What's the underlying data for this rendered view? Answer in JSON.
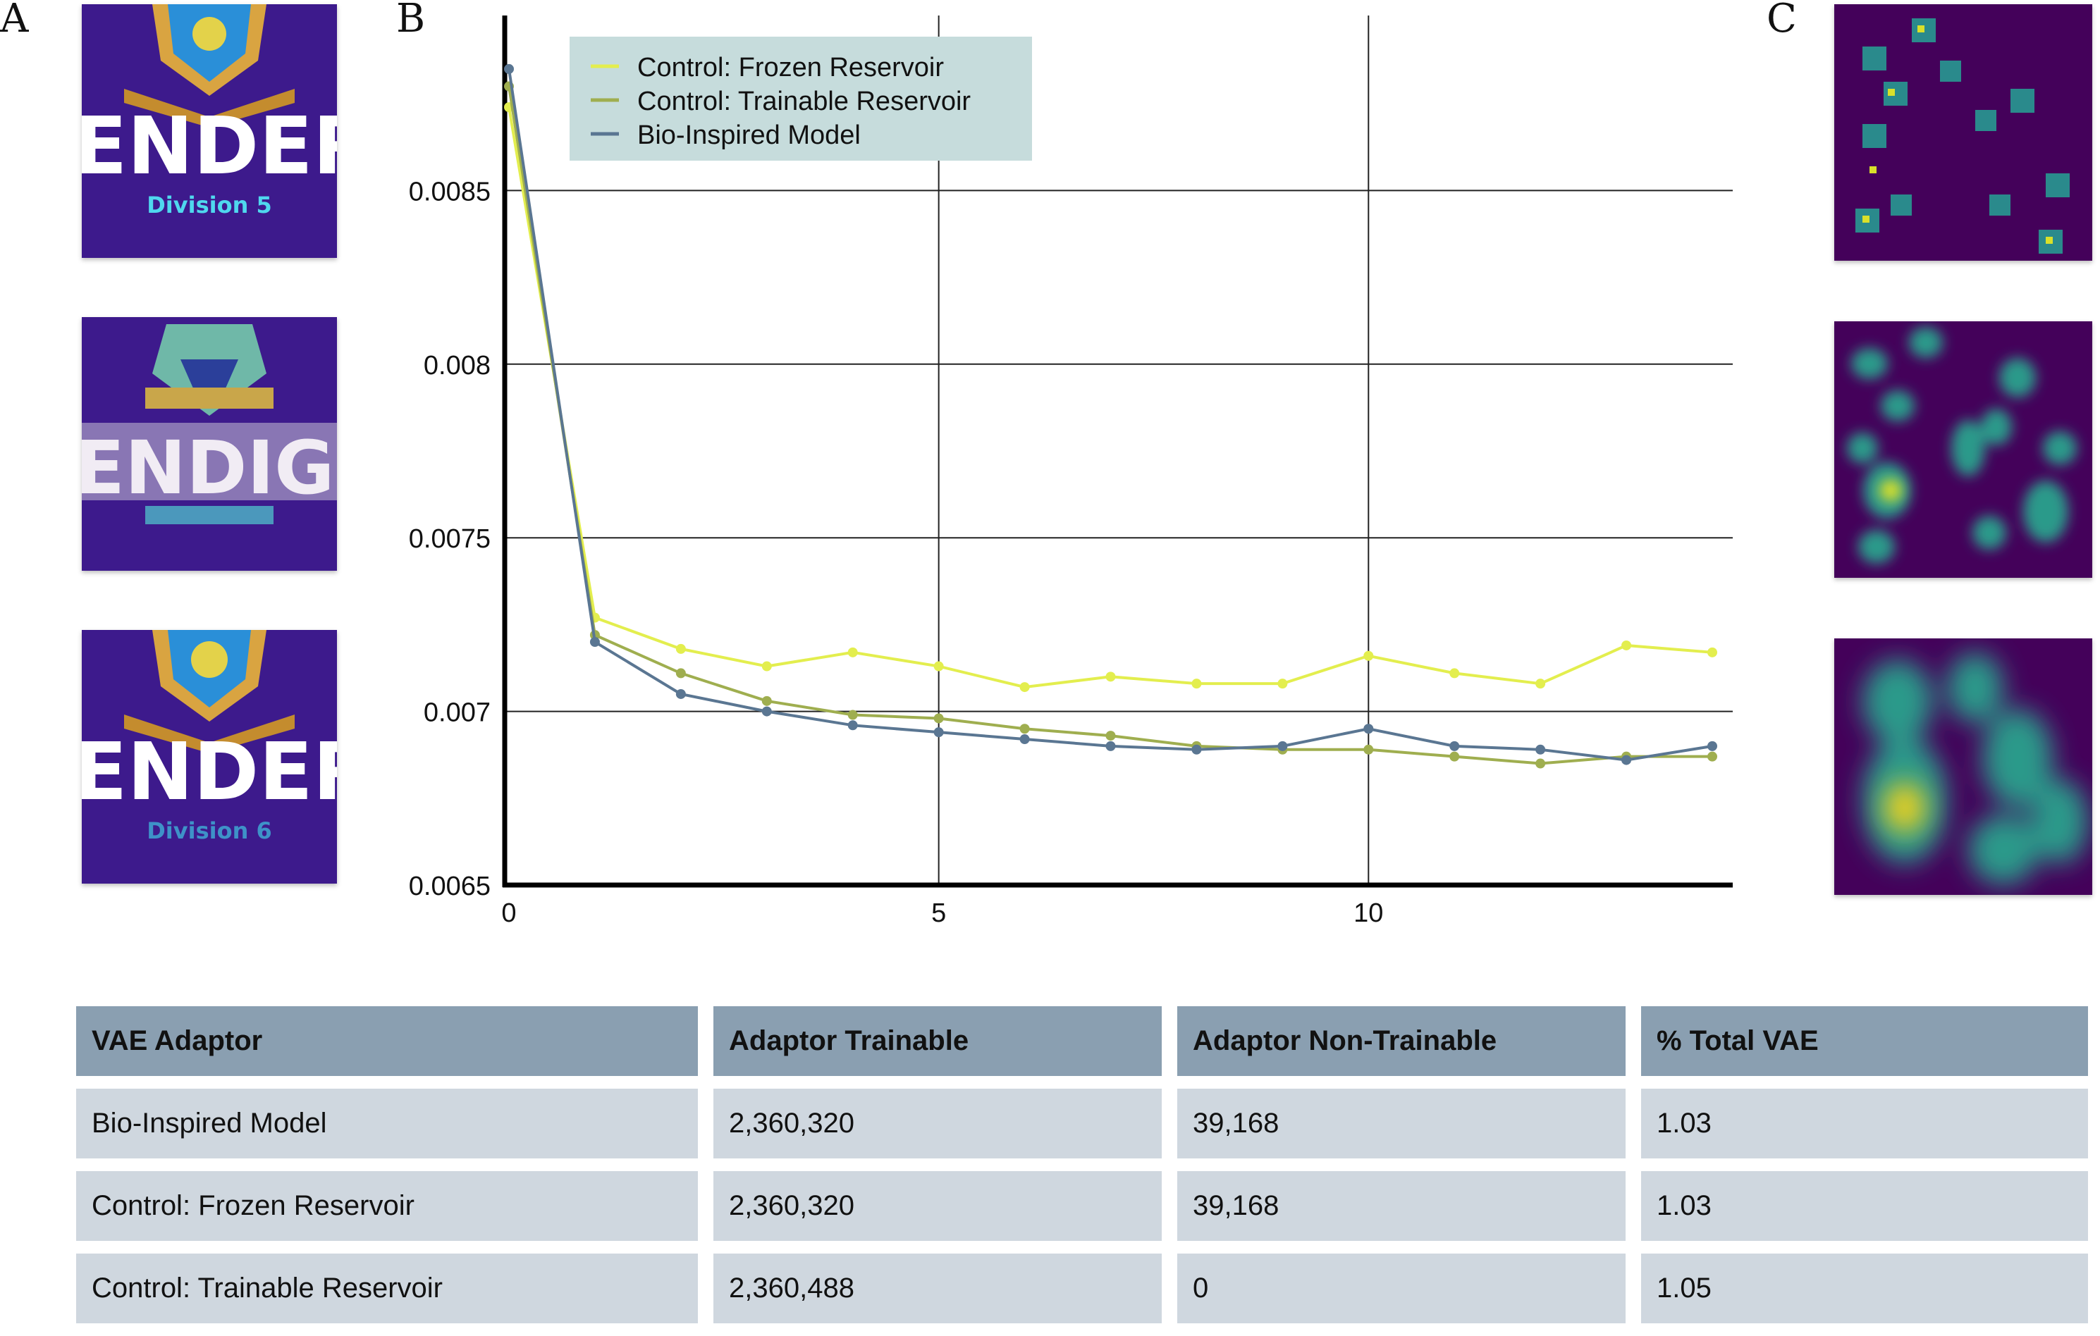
{
  "panels": {
    "a": "A",
    "b": "B",
    "c": "C"
  },
  "thumbnails": [
    {
      "big_text": "ENDER L",
      "small_text": "Division 5",
      "variant": "clean"
    },
    {
      "big_text": "ENDIG L",
      "small_text": "",
      "variant": "distorted"
    },
    {
      "big_text": "ENDER L",
      "small_text": "Division 6",
      "variant": "blurred"
    }
  ],
  "heatmaps": [
    "sharp-spots",
    "medium-blur",
    "heavy-blur"
  ],
  "colors": {
    "frozen": "#e3ee4e",
    "trainable": "#9fae4f",
    "bio": "#5a7692",
    "legend_bg": "#c6dcdc",
    "thumb_bg": "#3d1a8c",
    "heat_bg": "#44015a"
  },
  "chart_data": {
    "type": "line",
    "xlim": [
      0,
      15
    ],
    "ylim": [
      0.0065,
      0.009
    ],
    "xticks": [
      0,
      5,
      10
    ],
    "yticks": [
      0.0065,
      0.007,
      0.0075,
      0.008,
      0.0085
    ],
    "ytick_labels": [
      "0.0065",
      "0.007",
      "0.0075",
      "0.008",
      "0.0085"
    ],
    "grid": true,
    "legend_position": "top-left",
    "x": [
      0,
      1,
      2,
      3,
      4,
      5,
      6,
      7,
      8,
      9,
      10,
      11,
      12,
      13,
      14
    ],
    "series": [
      {
        "name": "Control:  Frozen Reservoir",
        "color_key": "frozen",
        "values": [
          0.00874,
          0.00727,
          0.00718,
          0.00713,
          0.00717,
          0.00713,
          0.00707,
          0.0071,
          0.00708,
          0.00708,
          0.00716,
          0.00711,
          0.00708,
          0.00719,
          0.00717
        ]
      },
      {
        "name": "Control: Trainable Reservoir",
        "color_key": "trainable",
        "values": [
          0.0088,
          0.00722,
          0.00711,
          0.00703,
          0.00699,
          0.00698,
          0.00695,
          0.00693,
          0.0069,
          0.00689,
          0.00689,
          0.00687,
          0.00685,
          0.00687,
          0.00687
        ]
      },
      {
        "name": "Bio-Inspired Model",
        "color_key": "bio",
        "values": [
          0.00885,
          0.0072,
          0.00705,
          0.007,
          0.00696,
          0.00694,
          0.00692,
          0.0069,
          0.00689,
          0.0069,
          0.00695,
          0.0069,
          0.00689,
          0.00686,
          0.0069
        ]
      }
    ]
  },
  "table": {
    "headers": [
      "VAE Adaptor",
      "Adaptor Trainable",
      "Adaptor Non-Trainable",
      "% Total VAE"
    ],
    "rows": [
      [
        "Bio-Inspired Model",
        "2,360,320",
        "39,168",
        "1.03"
      ],
      [
        "Control: Frozen Reservoir",
        "2,360,320",
        "39,168",
        "1.03"
      ],
      [
        "Control: Trainable Reservoir",
        "2,360,488",
        "0",
        "1.05"
      ]
    ]
  }
}
